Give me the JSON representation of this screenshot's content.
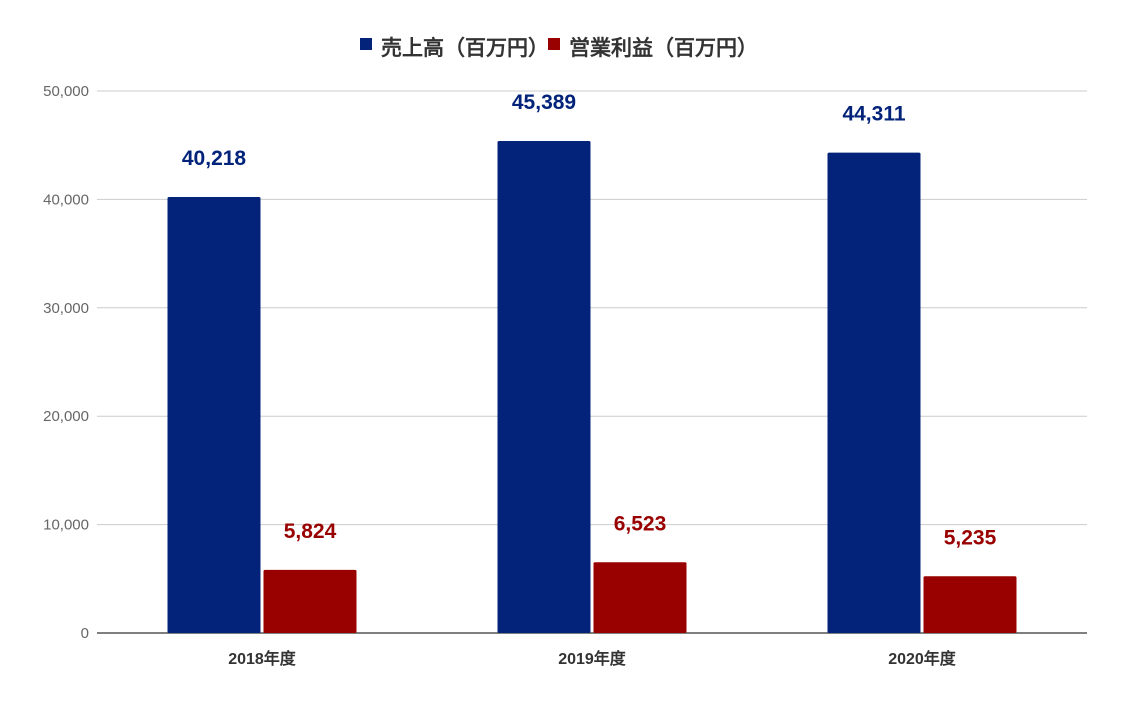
{
  "chart_data": {
    "type": "bar",
    "categories": [
      "2018年度",
      "2019年度",
      "2020年度"
    ],
    "series": [
      {
        "name": "売上高（百万円）",
        "values": [
          40218,
          45389,
          44311
        ],
        "labels": [
          "40,218",
          "45,389",
          "44,311"
        ],
        "color": "#022379"
      },
      {
        "name": "営業利益（百万円）",
        "values": [
          5824,
          6523,
          5235
        ],
        "labels": [
          "5,824",
          "6,523",
          "5,235"
        ],
        "color": "#990000"
      }
    ],
    "ylim": [
      0,
      50000
    ],
    "yticks": [
      0,
      10000,
      20000,
      30000,
      40000,
      50000
    ],
    "ytick_labels": [
      "0",
      "10,000",
      "20,000",
      "30,000",
      "40,000",
      "50,000"
    ],
    "grid": true,
    "legend_position": "top-center",
    "colors": {
      "gridline": "#cccccc",
      "axis": "#333333",
      "tick_text": "#666666",
      "category_text": "#333333"
    }
  }
}
